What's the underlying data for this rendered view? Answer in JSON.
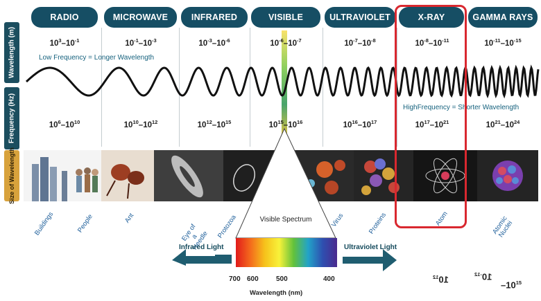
{
  "side_labels": {
    "wavelength": "Wavelength (m)",
    "frequency": "Frequency (Hz)",
    "size": "Size of Wavelength"
  },
  "bands": [
    {
      "name": "RADIO",
      "wavelength": [
        "10",
        "3",
        "–10",
        "-1"
      ],
      "frequency": [
        "10",
        "6",
        "–10",
        "10"
      ]
    },
    {
      "name": "MICROWAVE",
      "wavelength": [
        "10",
        "-1",
        "–10",
        "-3"
      ],
      "frequency": [
        "10",
        "10",
        "–10",
        "12"
      ]
    },
    {
      "name": "INFRARED",
      "wavelength": [
        "10",
        "-3",
        "–10",
        "-6"
      ],
      "frequency": [
        "10",
        "12",
        "–10",
        "15"
      ]
    },
    {
      "name": "VISIBLE",
      "wavelength": [
        "10",
        "-6",
        "–10",
        "-7"
      ],
      "frequency": [
        "10",
        "15",
        "–10",
        "16"
      ]
    },
    {
      "name": "ULTRAVIOLET",
      "wavelength": [
        "10",
        "-7",
        "–10",
        "-8"
      ],
      "frequency": [
        "10",
        "16",
        "–10",
        "17"
      ]
    },
    {
      "name": "X-RAY",
      "wavelength": [
        "10",
        "-8",
        "–10",
        "-11"
      ],
      "frequency": [
        "10",
        "17",
        "–10",
        "21"
      ]
    },
    {
      "name": "GAMMA RAYS",
      "wavelength": [
        "10",
        "-11",
        "–10",
        "-15"
      ],
      "frequency": [
        "10",
        "21",
        "–10",
        "24"
      ]
    }
  ],
  "notes": {
    "low": "Low Frequency = Longer Wavelength",
    "high": "HighFrequency = Shorter Wavelength"
  },
  "objects": [
    "Buildings",
    "People",
    "Ant",
    "Eye of a Needle",
    "Protozoa",
    "Virus",
    "Proteins",
    "Atom",
    "Atomic Nuclei"
  ],
  "spectrum": {
    "title": "Visible Spectrum",
    "left": "Infrared Light",
    "right": "Ultraviolet Light",
    "ticks": [
      "700",
      "600",
      "500",
      "400"
    ],
    "axis": "Wavelength (nm)"
  },
  "mirror_texts": {
    "a": "10",
    "a_sup": "12",
    "b": "10",
    "b_sup": "-12",
    "c": "–10",
    "c_sup": "15"
  },
  "colors": {
    "band": "#164e64",
    "highlight": "#d9282f",
    "accent": "#d8a23c"
  }
}
